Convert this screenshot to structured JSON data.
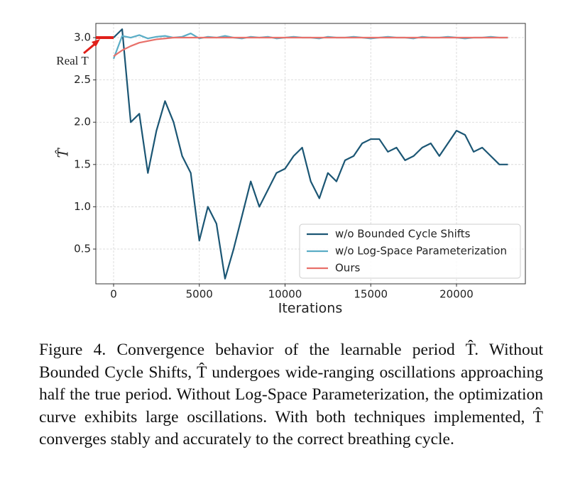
{
  "chart_data": {
    "type": "line",
    "xlabel": "Iterations",
    "ylabel": "T̂",
    "x": [
      0,
      500,
      1000,
      1500,
      2000,
      2500,
      3000,
      3500,
      4000,
      4500,
      5000,
      5500,
      6000,
      6500,
      7000,
      7500,
      8000,
      8500,
      9000,
      9500,
      10000,
      10500,
      11000,
      11500,
      12000,
      12500,
      13000,
      13500,
      14000,
      14500,
      15000,
      15500,
      16000,
      16500,
      17000,
      17500,
      18000,
      18500,
      19000,
      19500,
      20000,
      20500,
      21000,
      21500,
      22000,
      22500,
      23000
    ],
    "series": [
      {
        "name": "w/o Bounded Cycle Shifts",
        "color": "#1b5674",
        "values": [
          3.0,
          3.1,
          2.0,
          2.1,
          1.4,
          1.9,
          2.25,
          2.0,
          1.6,
          1.4,
          0.6,
          1.0,
          0.8,
          0.15,
          0.5,
          0.9,
          1.3,
          1.0,
          1.2,
          1.4,
          1.45,
          1.6,
          1.7,
          1.3,
          1.1,
          1.4,
          1.3,
          1.55,
          1.6,
          1.75,
          1.8,
          1.8,
          1.65,
          1.7,
          1.55,
          1.6,
          1.7,
          1.75,
          1.6,
          1.75,
          1.9,
          1.85,
          1.65,
          1.7,
          1.6,
          1.5,
          1.5
        ]
      },
      {
        "name": "w/o Log-Space Parameterization",
        "color": "#5aadc6",
        "values": [
          2.75,
          3.02,
          3.0,
          3.03,
          2.99,
          3.01,
          3.02,
          3.0,
          3.01,
          3.05,
          2.99,
          3.01,
          3.0,
          3.02,
          3.0,
          2.99,
          3.01,
          3.0,
          3.01,
          2.99,
          3.0,
          3.01,
          3.0,
          3.0,
          2.99,
          3.01,
          3.0,
          3.0,
          3.01,
          3.0,
          2.99,
          3.0,
          3.01,
          3.0,
          3.0,
          2.99,
          3.01,
          3.0,
          3.0,
          3.01,
          3.0,
          2.99,
          3.0,
          3.0,
          3.01,
          3.0,
          3.0
        ]
      },
      {
        "name": "Ours",
        "color": "#e8706a",
        "values": [
          2.78,
          2.85,
          2.9,
          2.94,
          2.96,
          2.98,
          2.99,
          3.0,
          3.0,
          3.0,
          3.0,
          3.0,
          3.0,
          3.0,
          3.0,
          3.0,
          3.0,
          3.0,
          3.0,
          3.0,
          3.0,
          3.0,
          3.0,
          3.0,
          3.0,
          3.0,
          3.0,
          3.0,
          3.0,
          3.0,
          3.0,
          3.0,
          3.0,
          3.0,
          3.0,
          3.0,
          3.0,
          3.0,
          3.0,
          3.0,
          3.0,
          3.0,
          3.0,
          3.0,
          3.0,
          3.0,
          3.0
        ]
      }
    ],
    "xlim": [
      -1035,
      24017
    ],
    "ylim": [
      0.089,
      3.168
    ],
    "xticks": [
      0,
      5000,
      10000,
      15000,
      20000
    ],
    "yticks": [
      0.5,
      {
        "value": 1,
        "label": "1.0"
      },
      1.5,
      {
        "value": 2,
        "label": "2.0"
      },
      2.5,
      {
        "value": 3,
        "label": "3.0"
      }
    ],
    "grid": true,
    "legend": "lower right",
    "annotation": {
      "text": "Real T",
      "value": 3,
      "color": "#e0201a"
    }
  },
  "caption": "Figure 4. Convergence behavior of the learnable period T̂. Without Bounded Cycle Shifts, T̂ undergoes wide-ranging oscillations approaching half the true period. Without Log-Space Parameterization, the optimization curve exhibits large oscillations. With both techniques implemented, T̂ converges stably and accurately to the correct breathing cycle."
}
